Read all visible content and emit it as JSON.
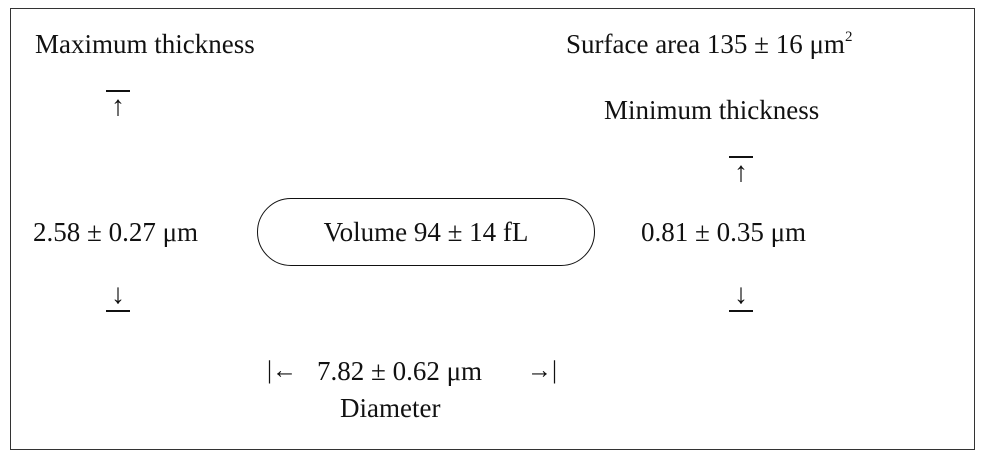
{
  "max_thickness": {
    "label": "Maximum thickness",
    "value": "2.58 ± 0.27 μm"
  },
  "surface_area": {
    "label": "Surface area 135 ± 16 μm",
    "superscript": "2"
  },
  "min_thickness": {
    "label": "Minimum thickness",
    "value": "0.81 ± 0.35 μm"
  },
  "volume": {
    "label": "Volume 94 ± 14 fL"
  },
  "diameter": {
    "left_marker": "|←",
    "value": "7.82 ± 0.62 μm",
    "right_marker": "→|",
    "label": "Diameter"
  },
  "icons": {
    "up": "↑",
    "down": "↓"
  }
}
